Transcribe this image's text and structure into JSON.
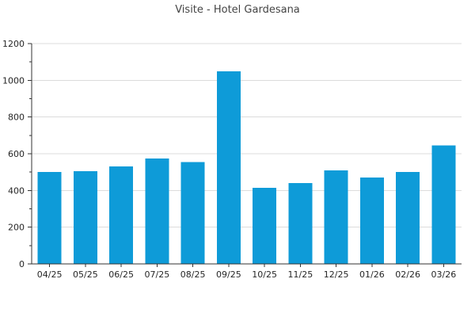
{
  "header": {
    "title": "Visite - Hotel Gardesana"
  },
  "chart_data": {
    "type": "bar",
    "title": "Visite - Hotel Gardesana",
    "categories": [
      "04/25",
      "05/25",
      "06/25",
      "07/25",
      "08/25",
      "09/25",
      "10/25",
      "11/25",
      "12/25",
      "01/26",
      "02/26",
      "03/26"
    ],
    "values": [
      500,
      505,
      530,
      575,
      555,
      1050,
      415,
      440,
      510,
      470,
      500,
      645
    ],
    "xlabel": "",
    "ylabel": "",
    "ylim": [
      0,
      1200
    ],
    "y_major_step": 200,
    "y_minor_step": 100,
    "y_tick_labels": [
      "0",
      "200",
      "400",
      "600",
      "800",
      "1000",
      "1200"
    ],
    "grid": "horizontal-major",
    "legend_position": "none",
    "bar_color": "#0e9bd8"
  },
  "colors": {
    "bar": "#0e9bd8",
    "grid": "#dcdcdc",
    "axis": "#333333",
    "tick_label": "#262626",
    "title": "#444444",
    "background": "#ffffff"
  }
}
